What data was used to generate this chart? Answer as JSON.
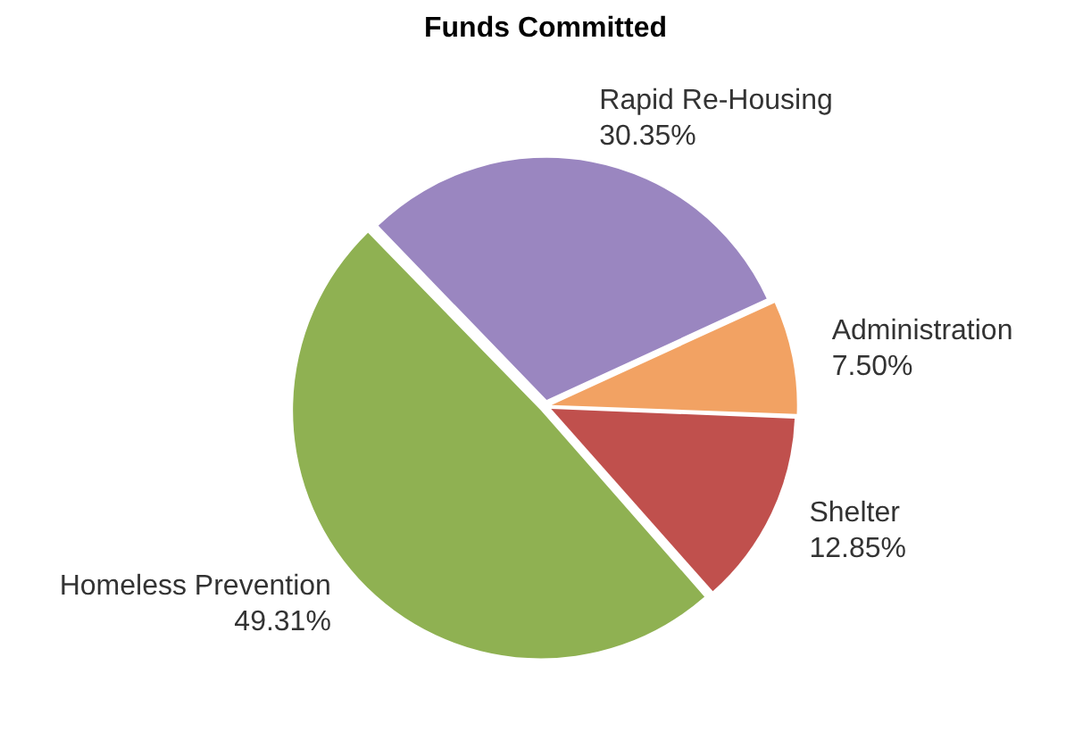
{
  "chart_data": {
    "type": "pie",
    "title": "Funds Committed",
    "categories": [
      "Rapid Re-Housing",
      "Administration",
      "Shelter",
      "Homeless Prevention"
    ],
    "values": [
      30.35,
      7.5,
      12.85,
      49.31
    ],
    "value_labels": [
      "30.35%",
      "7.50%",
      "12.85%",
      "49.31%"
    ],
    "colors": [
      "#9a86c0",
      "#f2a263",
      "#c0504d",
      "#8fb152"
    ],
    "legend": false
  }
}
